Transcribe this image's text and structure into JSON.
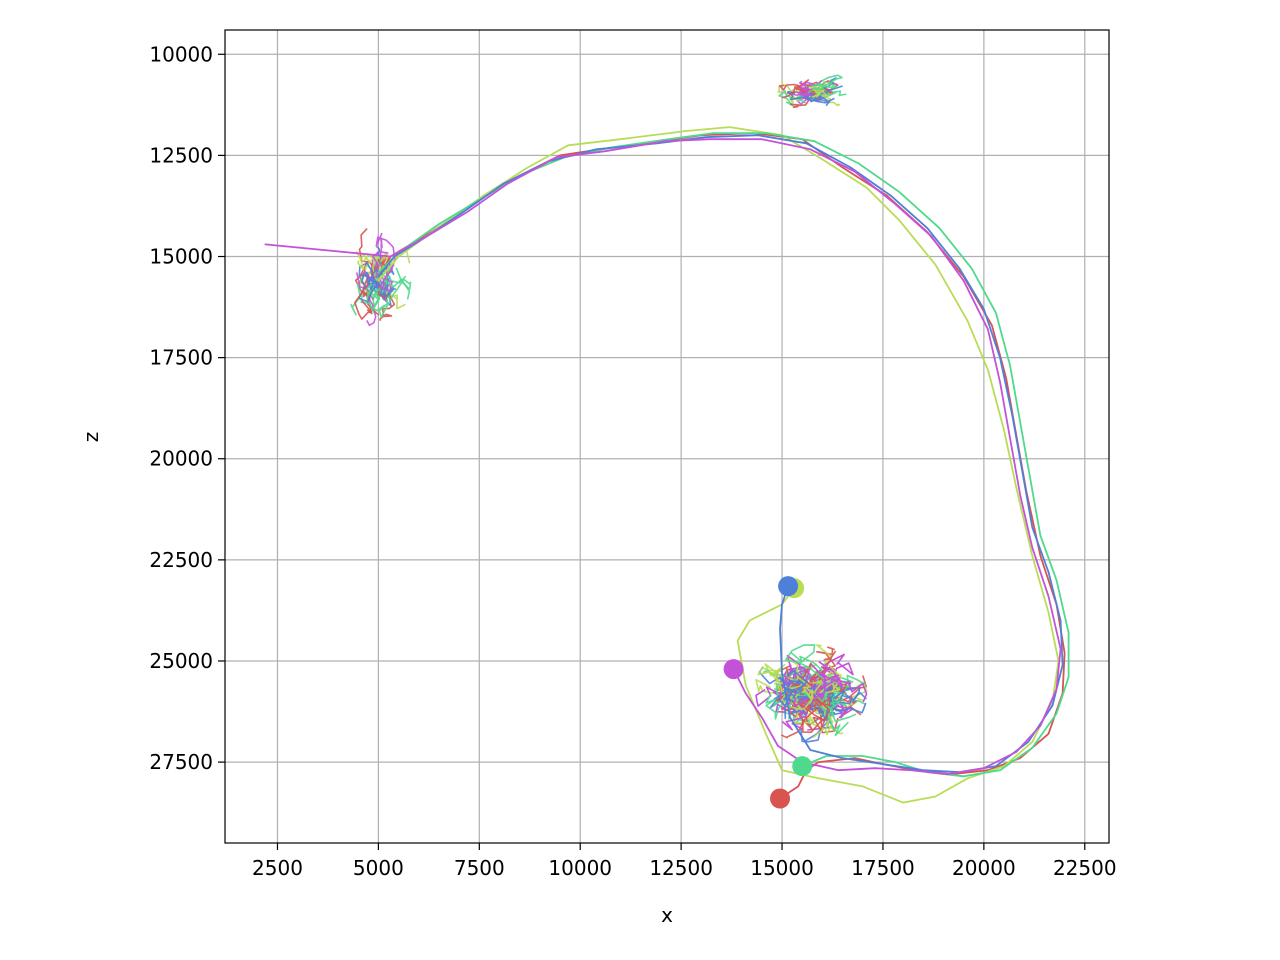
{
  "chart_data": {
    "type": "line",
    "title": "",
    "xlabel": "x",
    "ylabel": "z",
    "xlim": [
      1200,
      23100
    ],
    "ylim": [
      29500,
      9400
    ],
    "y_inverted": true,
    "grid": true,
    "x_ticks": [
      2500,
      5000,
      7500,
      10000,
      12500,
      15000,
      17500,
      20000,
      22500
    ],
    "y_ticks": [
      10000,
      12500,
      15000,
      17500,
      20000,
      22500,
      25000,
      27500
    ],
    "x_tick_labels": [
      "2500",
      "5000",
      "7500",
      "10000",
      "12500",
      "15000",
      "17500",
      "20000",
      "22500"
    ],
    "y_tick_labels": [
      "10000",
      "12500",
      "15000",
      "17500",
      "20000",
      "22500",
      "25000",
      "27500"
    ],
    "series": [
      {
        "color": "#d9534f",
        "soma": [
          14950,
          28400
        ],
        "path": [
          [
            14950,
            28400
          ],
          [
            15400,
            28100
          ],
          [
            15600,
            27700
          ],
          [
            15900,
            27500
          ],
          [
            16800,
            27400
          ],
          [
            17500,
            27550
          ],
          [
            18300,
            27700
          ],
          [
            19200,
            27800
          ],
          [
            20100,
            27700
          ],
          [
            20900,
            27400
          ],
          [
            21600,
            26800
          ],
          [
            21950,
            25800
          ],
          [
            22000,
            24800
          ],
          [
            21800,
            23600
          ],
          [
            21400,
            22400
          ],
          [
            21050,
            20800
          ],
          [
            20800,
            19400
          ],
          [
            20550,
            18000
          ],
          [
            20200,
            16700
          ],
          [
            19500,
            15500
          ],
          [
            18600,
            14400
          ],
          [
            17600,
            13500
          ],
          [
            16500,
            12800
          ],
          [
            15500,
            12100
          ],
          [
            14300,
            11950
          ],
          [
            13000,
            12000
          ],
          [
            12000,
            12150
          ],
          [
            10500,
            12350
          ],
          [
            9500,
            12500
          ],
          [
            8300,
            13100
          ],
          [
            7200,
            13800
          ],
          [
            6300,
            14400
          ],
          [
            5300,
            15000
          ],
          [
            5000,
            15500
          ]
        ]
      },
      {
        "color": "#b8dd55",
        "soma": [
          15300,
          23200
        ],
        "path": [
          [
            15300,
            23200
          ],
          [
            15000,
            23600
          ],
          [
            14200,
            24000
          ],
          [
            13900,
            24500
          ],
          [
            14100,
            25600
          ],
          [
            14600,
            26800
          ],
          [
            15000,
            27700
          ],
          [
            15900,
            27900
          ],
          [
            17000,
            28100
          ],
          [
            18000,
            28500
          ],
          [
            18800,
            28350
          ],
          [
            19600,
            27900
          ],
          [
            20500,
            27600
          ],
          [
            21200,
            27000
          ],
          [
            21700,
            26000
          ],
          [
            21850,
            25000
          ],
          [
            21600,
            23800
          ],
          [
            21200,
            22400
          ],
          [
            20800,
            20700
          ],
          [
            20500,
            19300
          ],
          [
            20100,
            17800
          ],
          [
            19600,
            16600
          ],
          [
            18800,
            15200
          ],
          [
            17900,
            14100
          ],
          [
            17100,
            13300
          ],
          [
            16000,
            12600
          ],
          [
            15000,
            12000
          ],
          [
            13700,
            11800
          ],
          [
            12600,
            11900
          ],
          [
            11000,
            12100
          ],
          [
            9700,
            12250
          ],
          [
            8700,
            12800
          ],
          [
            7600,
            13500
          ],
          [
            6600,
            14200
          ],
          [
            5500,
            15000
          ],
          [
            5000,
            15600
          ]
        ]
      },
      {
        "color": "#4fd98c",
        "soma": [
          15500,
          27600
        ],
        "path": [
          [
            15500,
            27600
          ],
          [
            16100,
            27350
          ],
          [
            17000,
            27350
          ],
          [
            17800,
            27500
          ],
          [
            18600,
            27750
          ],
          [
            19500,
            27850
          ],
          [
            20400,
            27700
          ],
          [
            21200,
            27150
          ],
          [
            21800,
            26300
          ],
          [
            22100,
            25400
          ],
          [
            22100,
            24300
          ],
          [
            21800,
            23000
          ],
          [
            21400,
            21900
          ],
          [
            21150,
            20500
          ],
          [
            20900,
            19100
          ],
          [
            20650,
            17700
          ],
          [
            20300,
            16400
          ],
          [
            19700,
            15300
          ],
          [
            18900,
            14300
          ],
          [
            17900,
            13400
          ],
          [
            16900,
            12700
          ],
          [
            15800,
            12150
          ],
          [
            14600,
            11950
          ],
          [
            13300,
            11950
          ],
          [
            12200,
            12100
          ],
          [
            10800,
            12300
          ],
          [
            9600,
            12550
          ],
          [
            8500,
            13000
          ],
          [
            7500,
            13600
          ],
          [
            6500,
            14200
          ],
          [
            5500,
            14900
          ],
          [
            5000,
            15400
          ]
        ]
      },
      {
        "color": "#4f80d9",
        "soma": [
          15150,
          23150
        ],
        "path": [
          [
            15150,
            23150
          ],
          [
            15000,
            23600
          ],
          [
            14950,
            24200
          ],
          [
            15000,
            25300
          ],
          [
            15200,
            26400
          ],
          [
            15700,
            27200
          ],
          [
            16500,
            27400
          ],
          [
            17500,
            27550
          ],
          [
            18500,
            27700
          ],
          [
            19400,
            27750
          ],
          [
            20300,
            27600
          ],
          [
            21100,
            27000
          ],
          [
            21700,
            26100
          ],
          [
            21950,
            25100
          ],
          [
            21900,
            24000
          ],
          [
            21600,
            22800
          ],
          [
            21200,
            21700
          ],
          [
            20950,
            20300
          ],
          [
            20700,
            18900
          ],
          [
            20400,
            17500
          ],
          [
            20000,
            16300
          ],
          [
            19400,
            15300
          ],
          [
            18600,
            14300
          ],
          [
            17700,
            13500
          ],
          [
            16700,
            12800
          ],
          [
            15600,
            12200
          ],
          [
            14400,
            12000
          ],
          [
            13100,
            12050
          ],
          [
            11900,
            12200
          ],
          [
            10400,
            12350
          ],
          [
            9200,
            12650
          ],
          [
            8100,
            13200
          ],
          [
            7100,
            13900
          ],
          [
            6200,
            14500
          ],
          [
            5400,
            15000
          ],
          [
            5000,
            15500
          ]
        ]
      },
      {
        "color": "#c452d9",
        "soma": [
          13800,
          25200
        ],
        "path": [
          [
            13800,
            25200
          ],
          [
            14100,
            25800
          ],
          [
            14500,
            26400
          ],
          [
            14900,
            27100
          ],
          [
            15500,
            27500
          ],
          [
            16400,
            27700
          ],
          [
            17300,
            27650
          ],
          [
            18200,
            27700
          ],
          [
            19100,
            27800
          ],
          [
            20000,
            27650
          ],
          [
            20800,
            27250
          ],
          [
            21400,
            26600
          ],
          [
            21800,
            25700
          ],
          [
            21900,
            24700
          ],
          [
            21600,
            23400
          ],
          [
            21200,
            22200
          ],
          [
            20900,
            20900
          ],
          [
            20650,
            19500
          ],
          [
            20400,
            18100
          ],
          [
            20100,
            16800
          ],
          [
            19500,
            15600
          ],
          [
            18700,
            14500
          ],
          [
            17800,
            13700
          ],
          [
            16800,
            12900
          ],
          [
            15700,
            12350
          ],
          [
            14500,
            12100
          ],
          [
            13200,
            12100
          ],
          [
            12100,
            12150
          ],
          [
            10600,
            12400
          ],
          [
            9400,
            12550
          ],
          [
            8200,
            13200
          ],
          [
            7200,
            13900
          ],
          [
            6200,
            14500
          ],
          [
            5300,
            15000
          ],
          [
            2200,
            14700
          ]
        ]
      }
    ],
    "clusters": [
      {
        "name": "",
        "center": [
          5000,
          15500
        ],
        "radius": [
          800,
          1300
        ]
      },
      {
        "name": "",
        "center": [
          15700,
          25800
        ],
        "radius": [
          1400,
          1200
        ]
      },
      {
        "name": "",
        "center": [
          15800,
          10900
        ],
        "radius": [
          900,
          500
        ]
      }
    ]
  }
}
